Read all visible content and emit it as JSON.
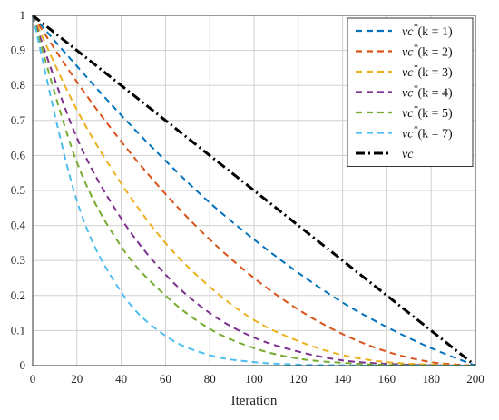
{
  "chart_data": {
    "type": "line",
    "title": "",
    "xlabel": "Iteration",
    "ylabel": "",
    "xlim": [
      0,
      200
    ],
    "ylim": [
      0,
      1
    ],
    "xticks": [
      "0",
      "20",
      "40",
      "60",
      "80",
      "100",
      "120",
      "140",
      "160",
      "180",
      "200"
    ],
    "yticks": [
      "0",
      "0.1",
      "0.2",
      "0.3",
      "0.4",
      "0.5",
      "0.6",
      "0.7",
      "0.8",
      "0.9",
      "1"
    ],
    "grid": true,
    "legend_position": "top-right",
    "x": [
      0,
      20,
      40,
      60,
      80,
      100,
      120,
      140,
      160,
      180,
      200
    ],
    "series": [
      {
        "label_main": "vc",
        "label_sup": "*",
        "label_param": "(k = 1)",
        "color": "#0072BD",
        "dash": "dashed",
        "values": [
          1,
          0.855,
          0.715,
          0.585,
          0.465,
          0.36,
          0.265,
          0.18,
          0.11,
          0.05,
          0
        ]
      },
      {
        "label_main": "vc",
        "label_sup": "*",
        "label_param": "(k = 2)",
        "color": "#D95319",
        "dash": "dashed",
        "values": [
          1,
          0.81,
          0.64,
          0.49,
          0.36,
          0.25,
          0.16,
          0.09,
          0.04,
          0.01,
          0
        ]
      },
      {
        "label_main": "vc",
        "label_sup": "*",
        "label_param": "(k = 3)",
        "color": "#EDB120",
        "dash": "dashed",
        "values": [
          1,
          0.73,
          0.52,
          0.35,
          0.225,
          0.13,
          0.07,
          0.03,
          0.01,
          0.003,
          0
        ]
      },
      {
        "label_main": "vc",
        "label_sup": "*",
        "label_param": "(k = 4)",
        "color": "#7E2F8E",
        "dash": "dashed",
        "values": [
          1,
          0.65,
          0.42,
          0.26,
          0.15,
          0.08,
          0.04,
          0.015,
          0.005,
          0.001,
          0
        ]
      },
      {
        "label_main": "vc",
        "label_sup": "*",
        "label_param": "(k = 5)",
        "color": "#77AC30",
        "dash": "dashed",
        "values": [
          1,
          0.58,
          0.34,
          0.2,
          0.105,
          0.05,
          0.02,
          0.008,
          0.002,
          0.0005,
          0
        ]
      },
      {
        "label_main": "vc",
        "label_sup": "*",
        "label_param": "(k = 7)",
        "color": "#4DBEEE",
        "dash": "dashed",
        "values": [
          1,
          0.47,
          0.21,
          0.085,
          0.03,
          0.01,
          0.003,
          0.001,
          0,
          0,
          0
        ]
      },
      {
        "label_main": "vc",
        "label_sup": "",
        "label_param": "",
        "color": "#000000",
        "dash": "dashdot",
        "values": [
          1,
          0.9,
          0.8,
          0.7,
          0.6,
          0.5,
          0.4,
          0.3,
          0.2,
          0.1,
          0
        ]
      }
    ]
  }
}
